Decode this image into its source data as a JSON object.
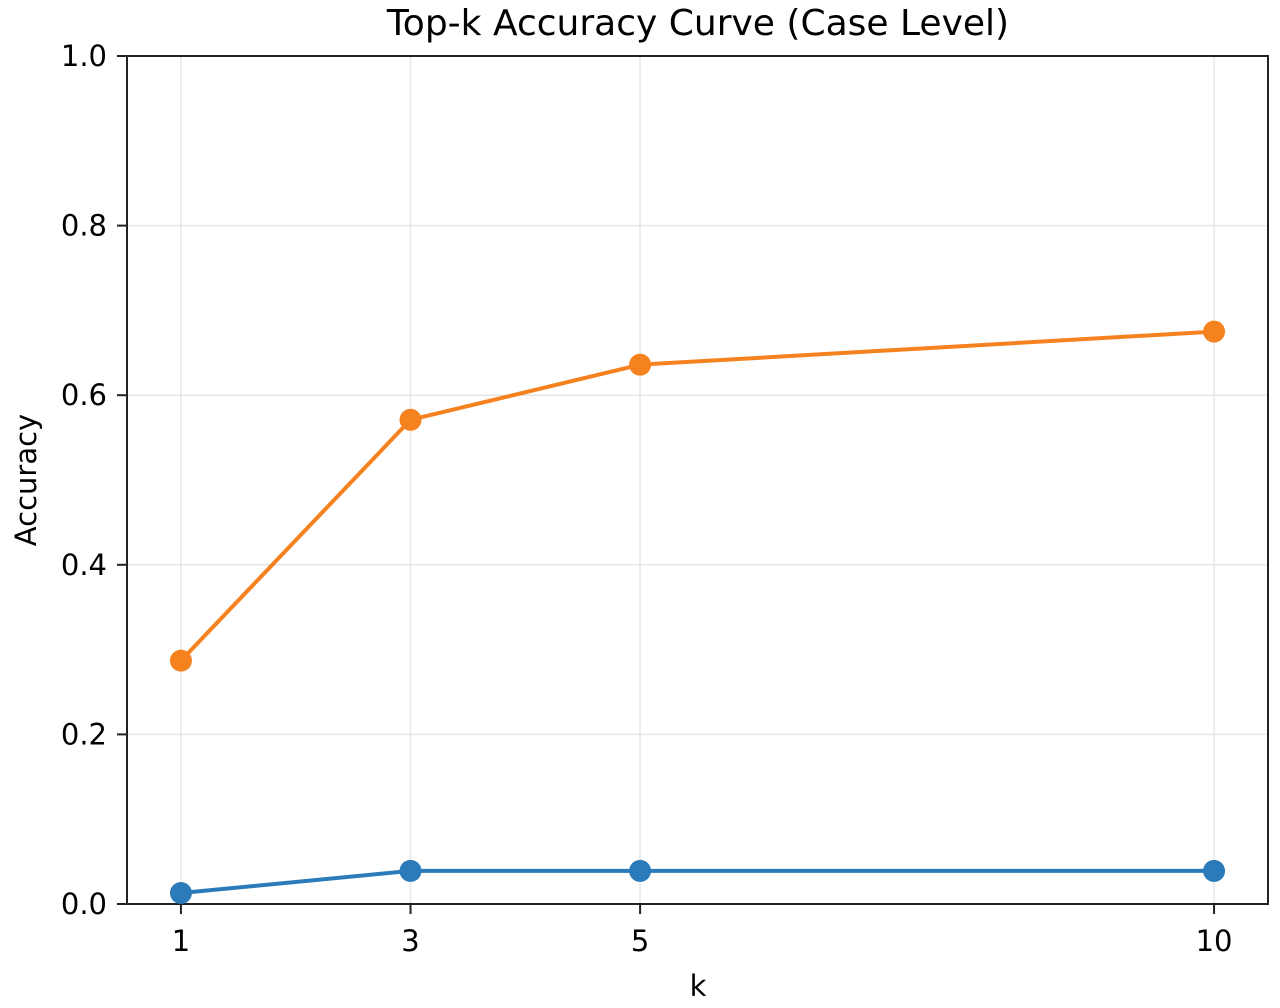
{
  "chart_data": {
    "type": "line",
    "title": "Top-k Accuracy Curve (Case Level)",
    "xlabel": "k",
    "ylabel": "Accuracy",
    "x": [
      1,
      3,
      5,
      10
    ],
    "xticks": [
      "1",
      "3",
      "5",
      "10"
    ],
    "yticks": [
      "0.0",
      "0.2",
      "0.4",
      "0.6",
      "0.8",
      "1.0"
    ],
    "xlim": [
      0.53,
      10.47
    ],
    "ylim": [
      0.0,
      1.0
    ],
    "grid": true,
    "series": [
      {
        "values": [
          0.287,
          0.571,
          0.636,
          0.675
        ],
        "color": "#f5821f"
      },
      {
        "values": [
          0.013,
          0.039,
          0.039,
          0.039
        ],
        "color": "#2b7bba"
      }
    ]
  }
}
